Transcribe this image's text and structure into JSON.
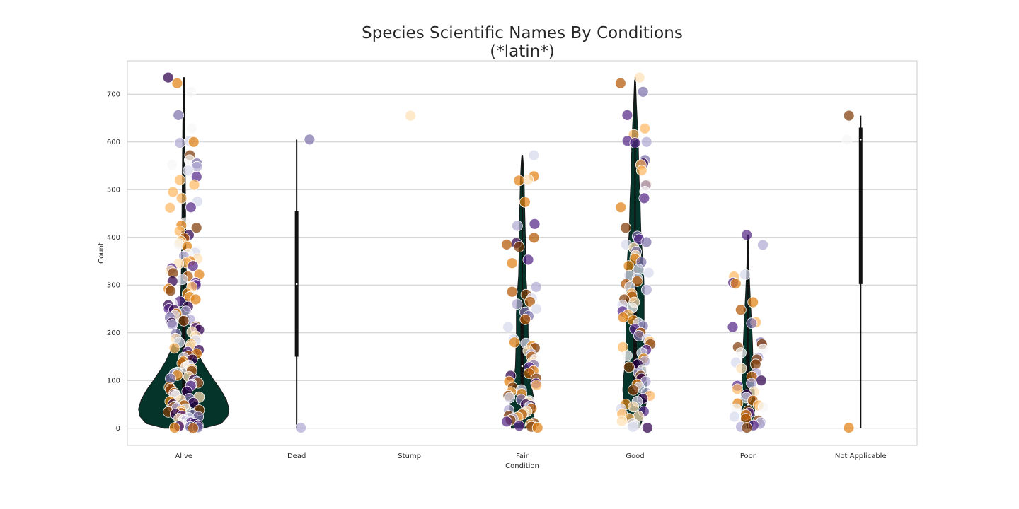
{
  "chart_data": {
    "type": "violin",
    "title": "Species Scientific Names By Conditions",
    "subtitle": "(*latin*)",
    "xlabel": "Condition",
    "ylabel": "Count",
    "categories": [
      "Alive",
      "Dead",
      "Stump",
      "Fair",
      "Good",
      "Poor",
      "Not Applicable"
    ],
    "yticks": [
      0,
      100,
      200,
      300,
      400,
      500,
      600,
      700
    ],
    "ylim": [
      -36,
      770
    ],
    "grid": true,
    "violin_color": "#04342a",
    "point_palette": [
      "#7f3b08",
      "#b35806",
      "#e08214",
      "#fdb863",
      "#fee0b6",
      "#f7f7f7",
      "#d8daeb",
      "#b2abd2",
      "#8073ac",
      "#542788",
      "#2d004b"
    ],
    "violins": [
      {
        "category": "Alive",
        "min": 0,
        "max": 735,
        "q1": 20,
        "median": 50,
        "q3": 250,
        "density": [
          [
            0,
            0.43
          ],
          [
            10,
            0.83
          ],
          [
            25,
            0.97
          ],
          [
            40,
            1.0
          ],
          [
            60,
            0.94
          ],
          [
            80,
            0.82
          ],
          [
            100,
            0.67
          ],
          [
            120,
            0.53
          ],
          [
            140,
            0.4
          ],
          [
            160,
            0.3
          ],
          [
            180,
            0.22
          ],
          [
            200,
            0.16
          ],
          [
            230,
            0.11
          ],
          [
            260,
            0.08
          ],
          [
            300,
            0.06
          ],
          [
            350,
            0.05
          ],
          [
            400,
            0.045
          ],
          [
            450,
            0.04
          ],
          [
            500,
            0.035
          ],
          [
            550,
            0.03
          ],
          [
            600,
            0.025
          ],
          [
            650,
            0.02
          ],
          [
            700,
            0.015
          ],
          [
            735,
            0.01
          ]
        ]
      },
      {
        "category": "Dead",
        "min": 0,
        "max": 605,
        "q1": 150,
        "median": 302,
        "q3": 455,
        "density": []
      },
      {
        "category": "Stump",
        "min": 655,
        "max": 655,
        "q1": 655,
        "median": 655,
        "q3": 655,
        "density": []
      },
      {
        "category": "Fair",
        "min": 0,
        "max": 572,
        "q1": 40,
        "median": 130,
        "q3": 260,
        "density": [
          [
            0,
            0.24
          ],
          [
            20,
            0.25
          ],
          [
            40,
            0.27
          ],
          [
            60,
            0.26
          ],
          [
            80,
            0.22
          ],
          [
            100,
            0.18
          ],
          [
            130,
            0.15
          ],
          [
            160,
            0.14
          ],
          [
            200,
            0.13
          ],
          [
            240,
            0.13
          ],
          [
            280,
            0.11
          ],
          [
            320,
            0.08
          ],
          [
            360,
            0.07
          ],
          [
            400,
            0.07
          ],
          [
            440,
            0.06
          ],
          [
            480,
            0.05
          ],
          [
            520,
            0.04
          ],
          [
            560,
            0.02
          ],
          [
            572,
            0.01
          ]
        ]
      },
      {
        "category": "Good",
        "min": 0,
        "max": 735,
        "q1": 70,
        "median": 200,
        "q3": 330,
        "density": [
          [
            0,
            0.1
          ],
          [
            20,
            0.17
          ],
          [
            50,
            0.24
          ],
          [
            80,
            0.27
          ],
          [
            110,
            0.25
          ],
          [
            140,
            0.21
          ],
          [
            170,
            0.2
          ],
          [
            200,
            0.2
          ],
          [
            230,
            0.2
          ],
          [
            260,
            0.2
          ],
          [
            290,
            0.2
          ],
          [
            320,
            0.19
          ],
          [
            350,
            0.17
          ],
          [
            380,
            0.15
          ],
          [
            410,
            0.13
          ],
          [
            440,
            0.12
          ],
          [
            480,
            0.11
          ],
          [
            520,
            0.09
          ],
          [
            560,
            0.08
          ],
          [
            600,
            0.07
          ],
          [
            640,
            0.05
          ],
          [
            680,
            0.03
          ],
          [
            720,
            0.015
          ],
          [
            735,
            0.01
          ]
        ]
      },
      {
        "category": "Poor",
        "min": 0,
        "max": 405,
        "q1": 15,
        "median": 50,
        "q3": 160,
        "density": [
          [
            0,
            0.09
          ],
          [
            20,
            0.14
          ],
          [
            40,
            0.15
          ],
          [
            60,
            0.15
          ],
          [
            80,
            0.14
          ],
          [
            100,
            0.13
          ],
          [
            120,
            0.12
          ],
          [
            150,
            0.11
          ],
          [
            180,
            0.1
          ],
          [
            220,
            0.08
          ],
          [
            260,
            0.06
          ],
          [
            300,
            0.04
          ],
          [
            350,
            0.02
          ],
          [
            405,
            0.01
          ]
        ]
      },
      {
        "category": "Not Applicable",
        "min": 0,
        "max": 655,
        "q1": 302,
        "median": 605,
        "q3": 630,
        "density": []
      }
    ],
    "points": [
      {
        "category": "Alive",
        "values": [
          735,
          723,
          705,
          656,
          628,
          602,
          600,
          598,
          572,
          562,
          555,
          552,
          548,
          540,
          527,
          520,
          510,
          495,
          482,
          475,
          463,
          462,
          430,
          425,
          420,
          413,
          405,
          398,
          392,
          388,
          385,
          380,
          372,
          368,
          365,
          360,
          355,
          350,
          347,
          345,
          340,
          335,
          330,
          325,
          322,
          318,
          312,
          308,
          305,
          300,
          296,
          292,
          288,
          282,
          278,
          275,
          270,
          266,
          262,
          258,
          255,
          250,
          248,
          245,
          240,
          236,
          232,
          228,
          225,
          221,
          217,
          213,
          210,
          206,
          202,
          198,
          193,
          188,
          184,
          180,
          176,
          172,
          168,
          164,
          160,
          156,
          152,
          148,
          144,
          140,
          136,
          132,
          128,
          124,
          120,
          117,
          114,
          111,
          108,
          104,
          101,
          98,
          95,
          92,
          89,
          86,
          83,
          80,
          77,
          74,
          71,
          68,
          65,
          62,
          59,
          56,
          53,
          50,
          48,
          46,
          44,
          42,
          40,
          38,
          36,
          34,
          32,
          30,
          28,
          26,
          24,
          22,
          20,
          18,
          16,
          14,
          12,
          10,
          8,
          6,
          5,
          4,
          3,
          2,
          1,
          0
        ]
      },
      {
        "category": "Dead",
        "values": [
          605,
          1
        ]
      },
      {
        "category": "Stump",
        "values": [
          655
        ]
      },
      {
        "category": "Fair",
        "values": [
          572,
          528,
          521,
          519,
          474,
          428,
          424,
          399,
          388,
          385,
          380,
          353,
          346,
          296,
          286,
          280,
          272,
          265,
          260,
          250,
          243,
          235,
          228,
          212,
          186,
          180,
          178,
          172,
          168,
          162,
          155,
          150,
          144,
          138,
          133,
          128,
          120,
          115,
          110,
          104,
          98,
          94,
          90,
          85,
          80,
          76,
          72,
          68,
          64,
          60,
          57,
          54,
          50,
          47,
          44,
          41,
          38,
          35,
          32,
          29,
          26,
          23,
          20,
          17,
          14,
          11,
          8,
          5,
          3,
          1
        ]
      },
      {
        "category": "Good",
        "values": [
          735,
          723,
          705,
          656,
          628,
          615,
          602,
          600,
          598,
          562,
          555,
          552,
          540,
          510,
          509,
          496,
          482,
          463,
          420,
          402,
          396,
          390,
          385,
          378,
          370,
          362,
          355,
          348,
          340,
          333,
          326,
          320,
          314,
          308,
          302,
          296,
          290,
          282,
          276,
          270,
          264,
          258,
          252,
          245,
          238,
          232,
          226,
          220,
          214,
          208,
          200,
          194,
          188,
          182,
          176,
          170,
          164,
          158,
          152,
          146,
          140,
          134,
          128,
          122,
          116,
          110,
          104,
          98,
          92,
          86,
          80,
          74,
          68,
          62,
          56,
          50,
          45,
          40,
          35,
          30,
          25,
          20,
          15,
          10,
          6,
          3,
          1
        ]
      },
      {
        "category": "Poor",
        "values": [
          405,
          384,
          322,
          318,
          305,
          303,
          264,
          248,
          222,
          220,
          212,
          180,
          176,
          170,
          165,
          158,
          148,
          144,
          138,
          134,
          125,
          115,
          108,
          100,
          94,
          89,
          82,
          76,
          70,
          64,
          58,
          52,
          48,
          44,
          40,
          36,
          32,
          28,
          24,
          20,
          16,
          12,
          9,
          6,
          3,
          1
        ]
      },
      {
        "category": "Not Applicable",
        "values": [
          655,
          605,
          1
        ]
      }
    ]
  }
}
